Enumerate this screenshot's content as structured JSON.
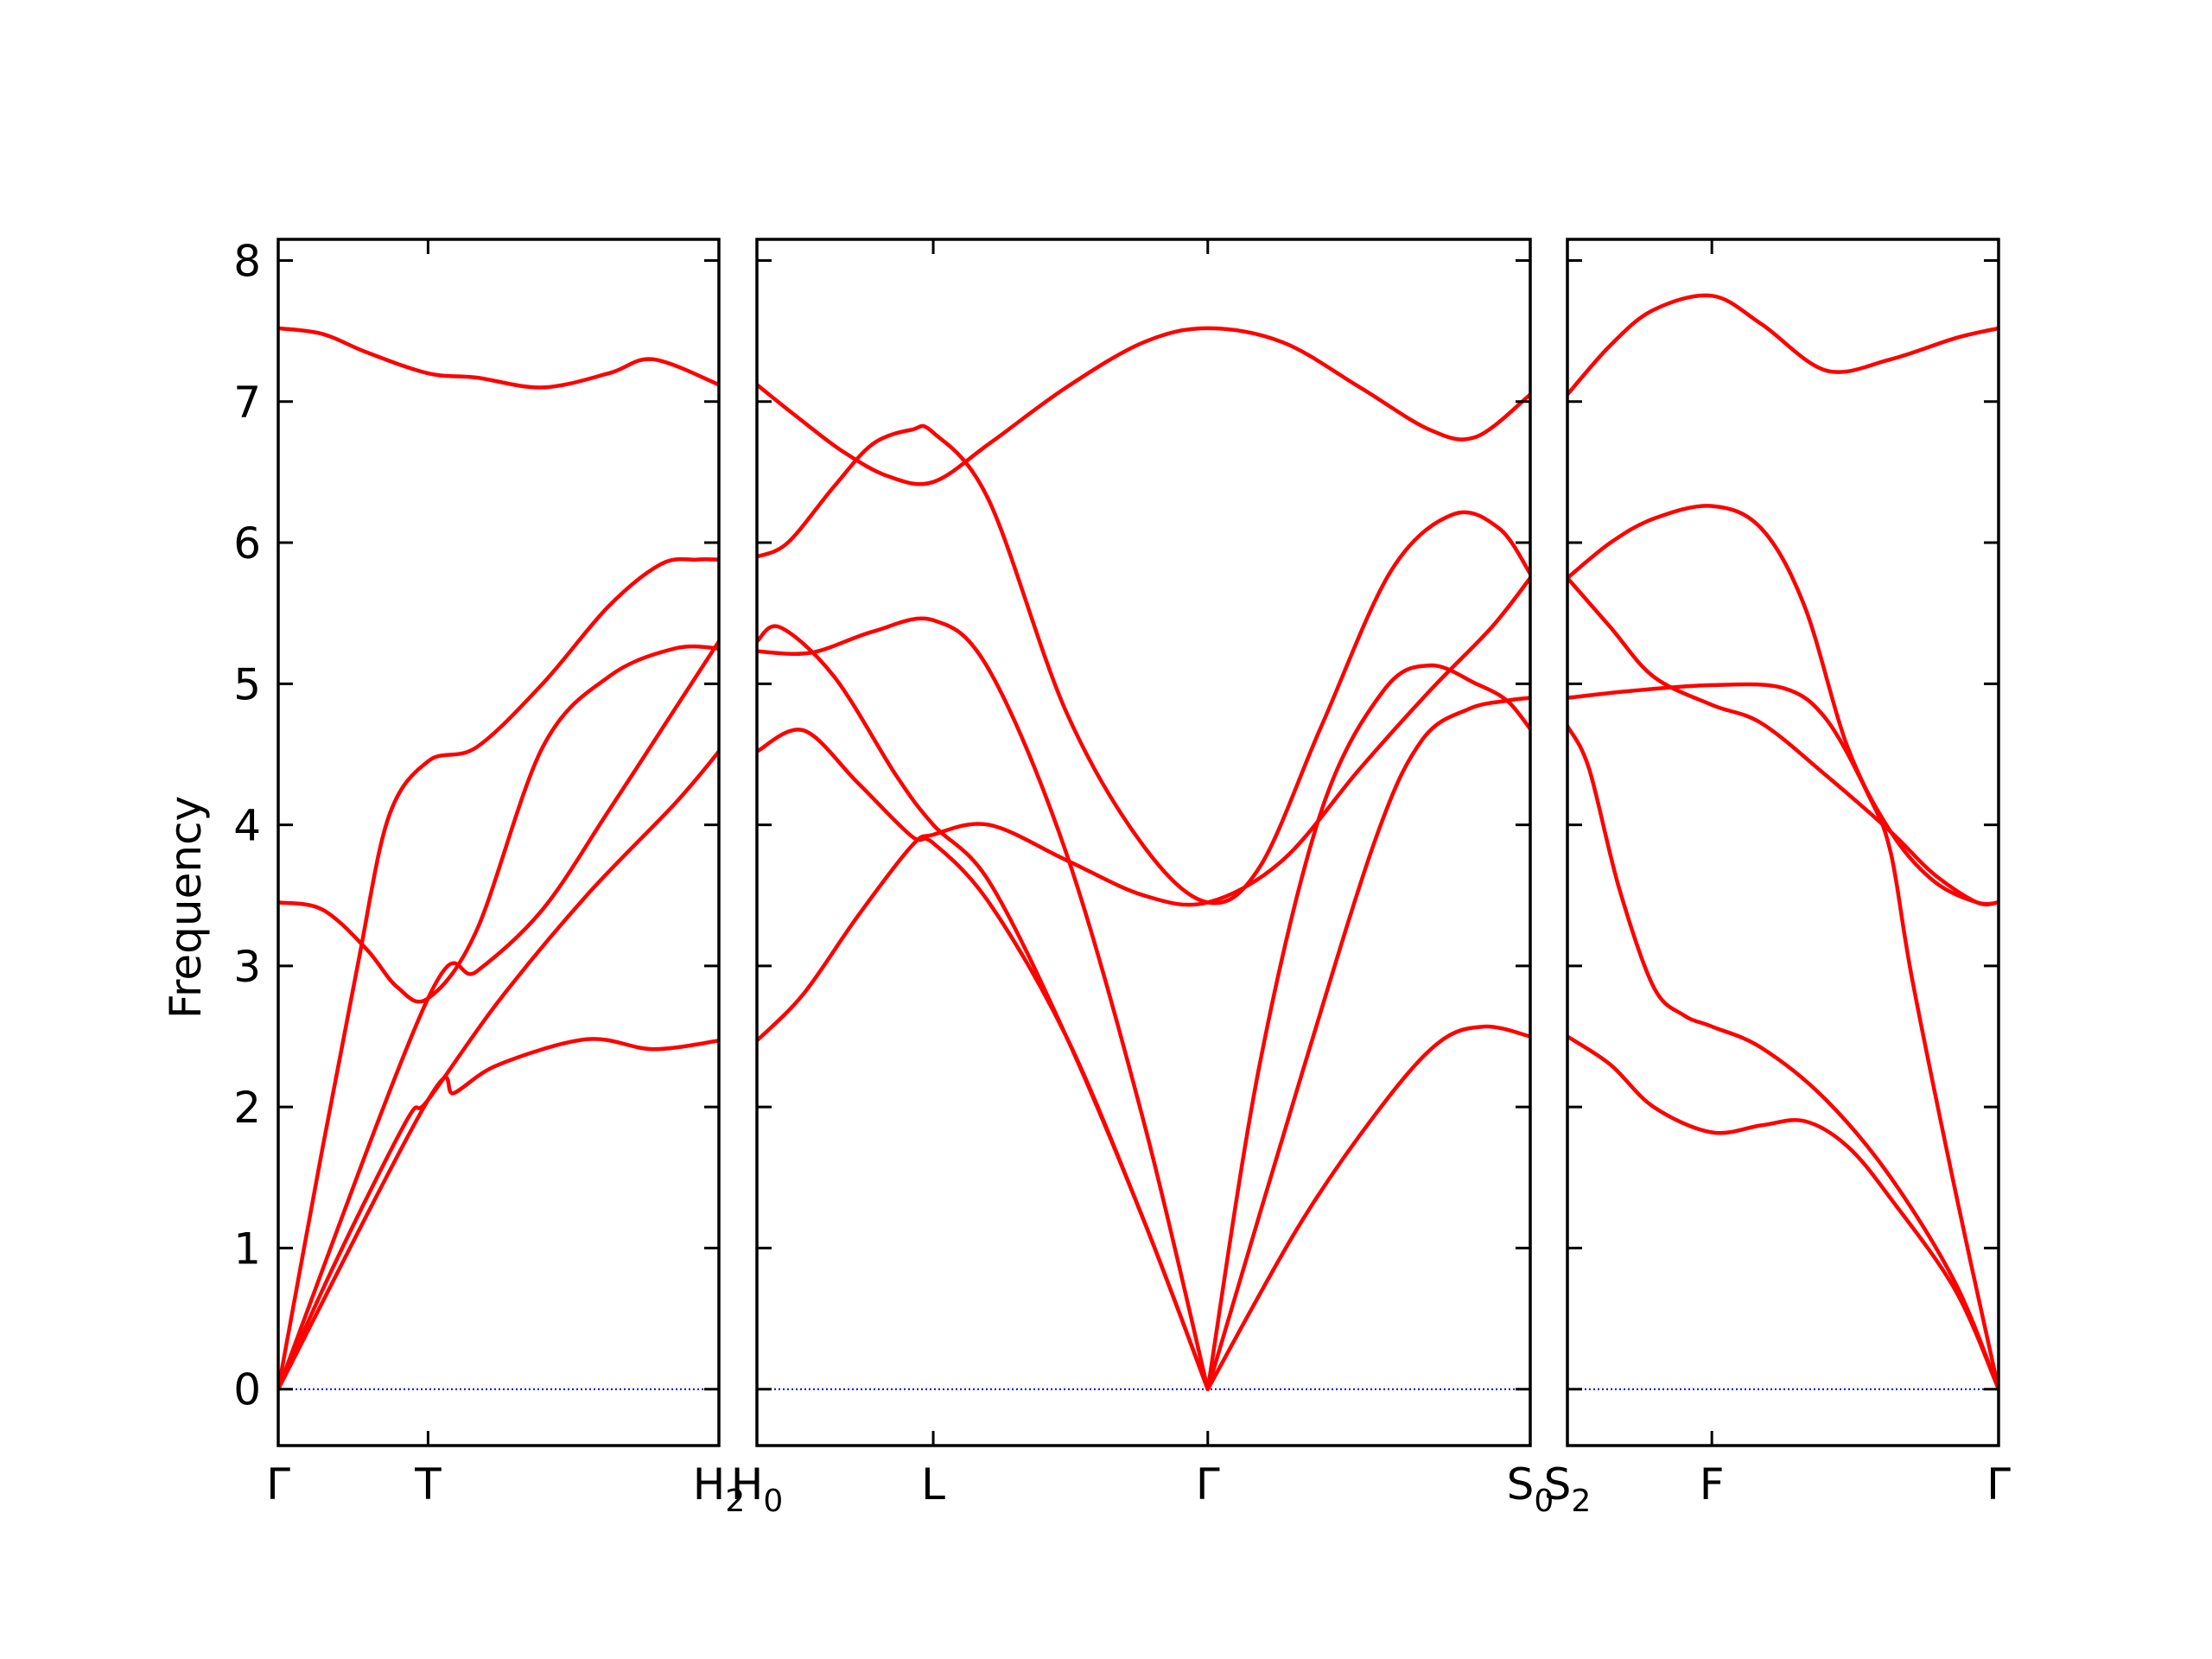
{
  "chart_data": {
    "type": "line",
    "ylabel": "Frequency",
    "ylim": [
      -0.4,
      8.15
    ],
    "yticks": [
      "0",
      "1",
      "2",
      "3",
      "4",
      "5",
      "6",
      "7",
      "8"
    ],
    "colors": {
      "bands": "#ff0000",
      "zero_line": "#0000ff",
      "frame": "#000000"
    },
    "zero_line": {
      "value": 0,
      "style": "dotted"
    },
    "panels": [
      {
        "id": "p1",
        "xlim": [
          0,
          1
        ],
        "ticks": [
          {
            "x": 0,
            "label": "Γ",
            "sub": ""
          },
          {
            "x": 0.34,
            "label": "T",
            "sub": ""
          },
          {
            "x": 1,
            "label": "H",
            "sub": "2"
          }
        ],
        "bands": [
          {
            "x": [
              0,
              0.1,
              0.2,
              0.34,
              0.45,
              0.6,
              0.75,
              0.85,
              1
            ],
            "y": [
              7.52,
              7.48,
              7.35,
              7.2,
              7.17,
              7.1,
              7.2,
              7.3,
              7.12
            ]
          },
          {
            "x": [
              0,
              0.1,
              0.18,
              0.25,
              0.34,
              0.45,
              0.6,
              0.75,
              0.87,
              0.95,
              1
            ],
            "y": [
              0,
              1.7,
              3.0,
              4.05,
              4.45,
              4.55,
              5.0,
              5.55,
              5.85,
              5.88,
              5.88
            ]
          },
          {
            "x": [
              0,
              0.1,
              0.2,
              0.27,
              0.34,
              0.45,
              0.6,
              0.75,
              0.9,
              1
            ],
            "y": [
              3.45,
              3.4,
              3.12,
              2.85,
              2.77,
              3.25,
              4.55,
              5.05,
              5.25,
              5.25
            ]
          },
          {
            "x": [
              0,
              0.34,
              0.45,
              0.6,
              0.75,
              0.9,
              1
            ],
            "y": [
              0,
              2.77,
              2.96,
              3.4,
              4.1,
              4.82,
              5.3
            ]
          },
          {
            "x": [
              0,
              0.1,
              0.2,
              0.3,
              0.34,
              0.5,
              0.7,
              0.9,
              1
            ],
            "y": [
              0,
              0.7,
              1.35,
              1.95,
              2.05,
              2.75,
              3.5,
              4.15,
              4.52
            ]
          },
          {
            "x": [
              0,
              0.34,
              0.4,
              0.5,
              0.7,
              0.85,
              1
            ],
            "y": [
              0,
              2.05,
              2.1,
              2.3,
              2.48,
              2.41,
              2.47
            ]
          }
        ]
      },
      {
        "id": "p2",
        "xlim": [
          0,
          1
        ],
        "ticks": [
          {
            "x": 0,
            "label": "H",
            "sub": "0"
          },
          {
            "x": 0.228,
            "label": "L",
            "sub": ""
          },
          {
            "x": 0.583,
            "label": "Γ",
            "sub": ""
          },
          {
            "x": 1,
            "label": "S",
            "sub": "0"
          }
        ],
        "bands": [
          {
            "x": [
              0,
              0.05,
              0.11,
              0.17,
              0.228,
              0.3,
              0.4,
              0.5,
              0.583,
              0.68,
              0.78,
              0.87,
              0.93,
              1
            ],
            "y": [
              7.12,
              6.9,
              6.65,
              6.47,
              6.43,
              6.7,
              7.1,
              7.42,
              7.52,
              7.42,
              7.1,
              6.8,
              6.75,
              7.05
            ]
          },
          {
            "x": [
              0,
              0.04,
              0.1,
              0.15,
              0.2,
              0.228,
              0.3,
              0.4,
              0.5,
              0.583,
              0.65,
              0.73,
              0.82,
              0.9,
              0.96,
              1
            ],
            "y": [
              5.9,
              6.0,
              6.4,
              6.7,
              6.8,
              6.78,
              6.3,
              4.8,
              3.85,
              3.45,
              3.7,
              4.7,
              5.8,
              6.2,
              6.1,
              5.78
            ]
          },
          {
            "x": [
              0,
              0.07,
              0.15,
              0.228,
              0.3,
              0.4,
              0.5,
              0.583
            ],
            "y": [
              5.23,
              5.22,
              5.37,
              5.45,
              5.1,
              3.8,
              1.9,
              0
            ]
          },
          {
            "x": [
              0,
              0.03,
              0.1,
              0.18,
              0.228,
              0.3,
              0.4,
              0.5,
              0.583
            ],
            "y": [
              5.3,
              5.4,
              5.05,
              4.35,
              4.0,
              3.6,
              2.5,
              1.2,
              0
            ]
          },
          {
            "x": [
              0,
              0.06,
              0.13,
              0.2,
              0.228,
              0.3,
              0.4,
              0.5,
              0.583
            ],
            "y": [
              4.52,
              4.67,
              4.3,
              3.92,
              3.87,
              3.45,
              2.5,
              1.2,
              0
            ]
          },
          {
            "x": [
              0,
              0.06,
              0.13,
              0.2,
              0.228,
              0.3,
              0.4,
              0.5,
              0.583,
              0.68,
              0.78,
              0.87,
              0.95,
              1
            ],
            "y": [
              2.47,
              2.8,
              3.35,
              3.85,
              3.93,
              4.0,
              3.75,
              3.5,
              3.45,
              3.75,
              4.4,
              4.95,
              5.4,
              5.75
            ]
          },
          {
            "x": [
              0.583,
              0.65,
              0.73,
              0.81,
              0.87,
              0.93,
              0.97,
              1
            ],
            "y": [
              0,
              2.3,
              4.1,
              4.95,
              5.13,
              5.0,
              4.88,
              4.68
            ]
          },
          {
            "x": [
              0.583,
              0.7,
              0.8,
              0.86,
              0.92,
              0.97,
              1
            ],
            "y": [
              0,
              2.15,
              3.9,
              4.6,
              4.82,
              4.88,
              4.9
            ]
          },
          {
            "x": [
              0.583,
              0.7,
              0.8,
              0.88,
              0.94,
              1
            ],
            "y": [
              0,
              1.15,
              1.95,
              2.45,
              2.57,
              2.5
            ]
          }
        ]
      },
      {
        "id": "p3",
        "xlim": [
          0,
          1
        ],
        "ticks": [
          {
            "x": 0,
            "label": "S",
            "sub": "2"
          },
          {
            "x": 0.335,
            "label": "F",
            "sub": ""
          },
          {
            "x": 1,
            "label": "Γ",
            "sub": ""
          }
        ],
        "bands": [
          {
            "x": [
              0,
              0.1,
              0.2,
              0.335,
              0.45,
              0.6,
              0.75,
              0.9,
              1
            ],
            "y": [
              7.05,
              7.4,
              7.65,
              7.75,
              7.55,
              7.22,
              7.3,
              7.45,
              7.52
            ]
          },
          {
            "x": [
              0,
              0.1,
              0.2,
              0.335,
              0.45,
              0.55,
              0.65,
              0.75,
              0.85,
              0.95,
              1
            ],
            "y": [
              5.75,
              6.0,
              6.17,
              6.26,
              6.1,
              5.55,
              4.55,
              3.95,
              3.6,
              3.45,
              3.45
            ]
          },
          {
            "x": [
              0,
              0.1,
              0.2,
              0.335,
              0.45,
              0.6,
              0.75,
              0.85,
              0.95,
              1
            ],
            "y": [
              5.75,
              5.4,
              5.05,
              4.85,
              4.72,
              4.35,
              3.95,
              3.65,
              3.45,
              3.45
            ]
          },
          {
            "x": [
              0,
              0.15,
              0.335,
              0.5,
              0.6,
              0.7,
              0.75,
              0.8,
              0.9,
              1
            ],
            "y": [
              4.9,
              4.95,
              4.99,
              4.97,
              4.75,
              4.2,
              3.8,
              2.9,
              1.4,
              0
            ]
          },
          {
            "x": [
              0,
              0.05,
              0.12,
              0.2,
              0.27,
              0.335,
              0.45,
              0.6,
              0.75,
              0.9,
              1
            ],
            "y": [
              4.7,
              4.4,
              3.55,
              2.85,
              2.65,
              2.57,
              2.42,
              2.05,
              1.5,
              0.75,
              0
            ]
          },
          {
            "x": [
              0,
              0.1,
              0.2,
              0.335,
              0.45,
              0.55,
              0.65,
              0.75,
              0.9,
              1
            ],
            "y": [
              2.5,
              2.3,
              2.0,
              1.82,
              1.87,
              1.9,
              1.72,
              1.35,
              0.7,
              0
            ]
          }
        ]
      }
    ]
  }
}
